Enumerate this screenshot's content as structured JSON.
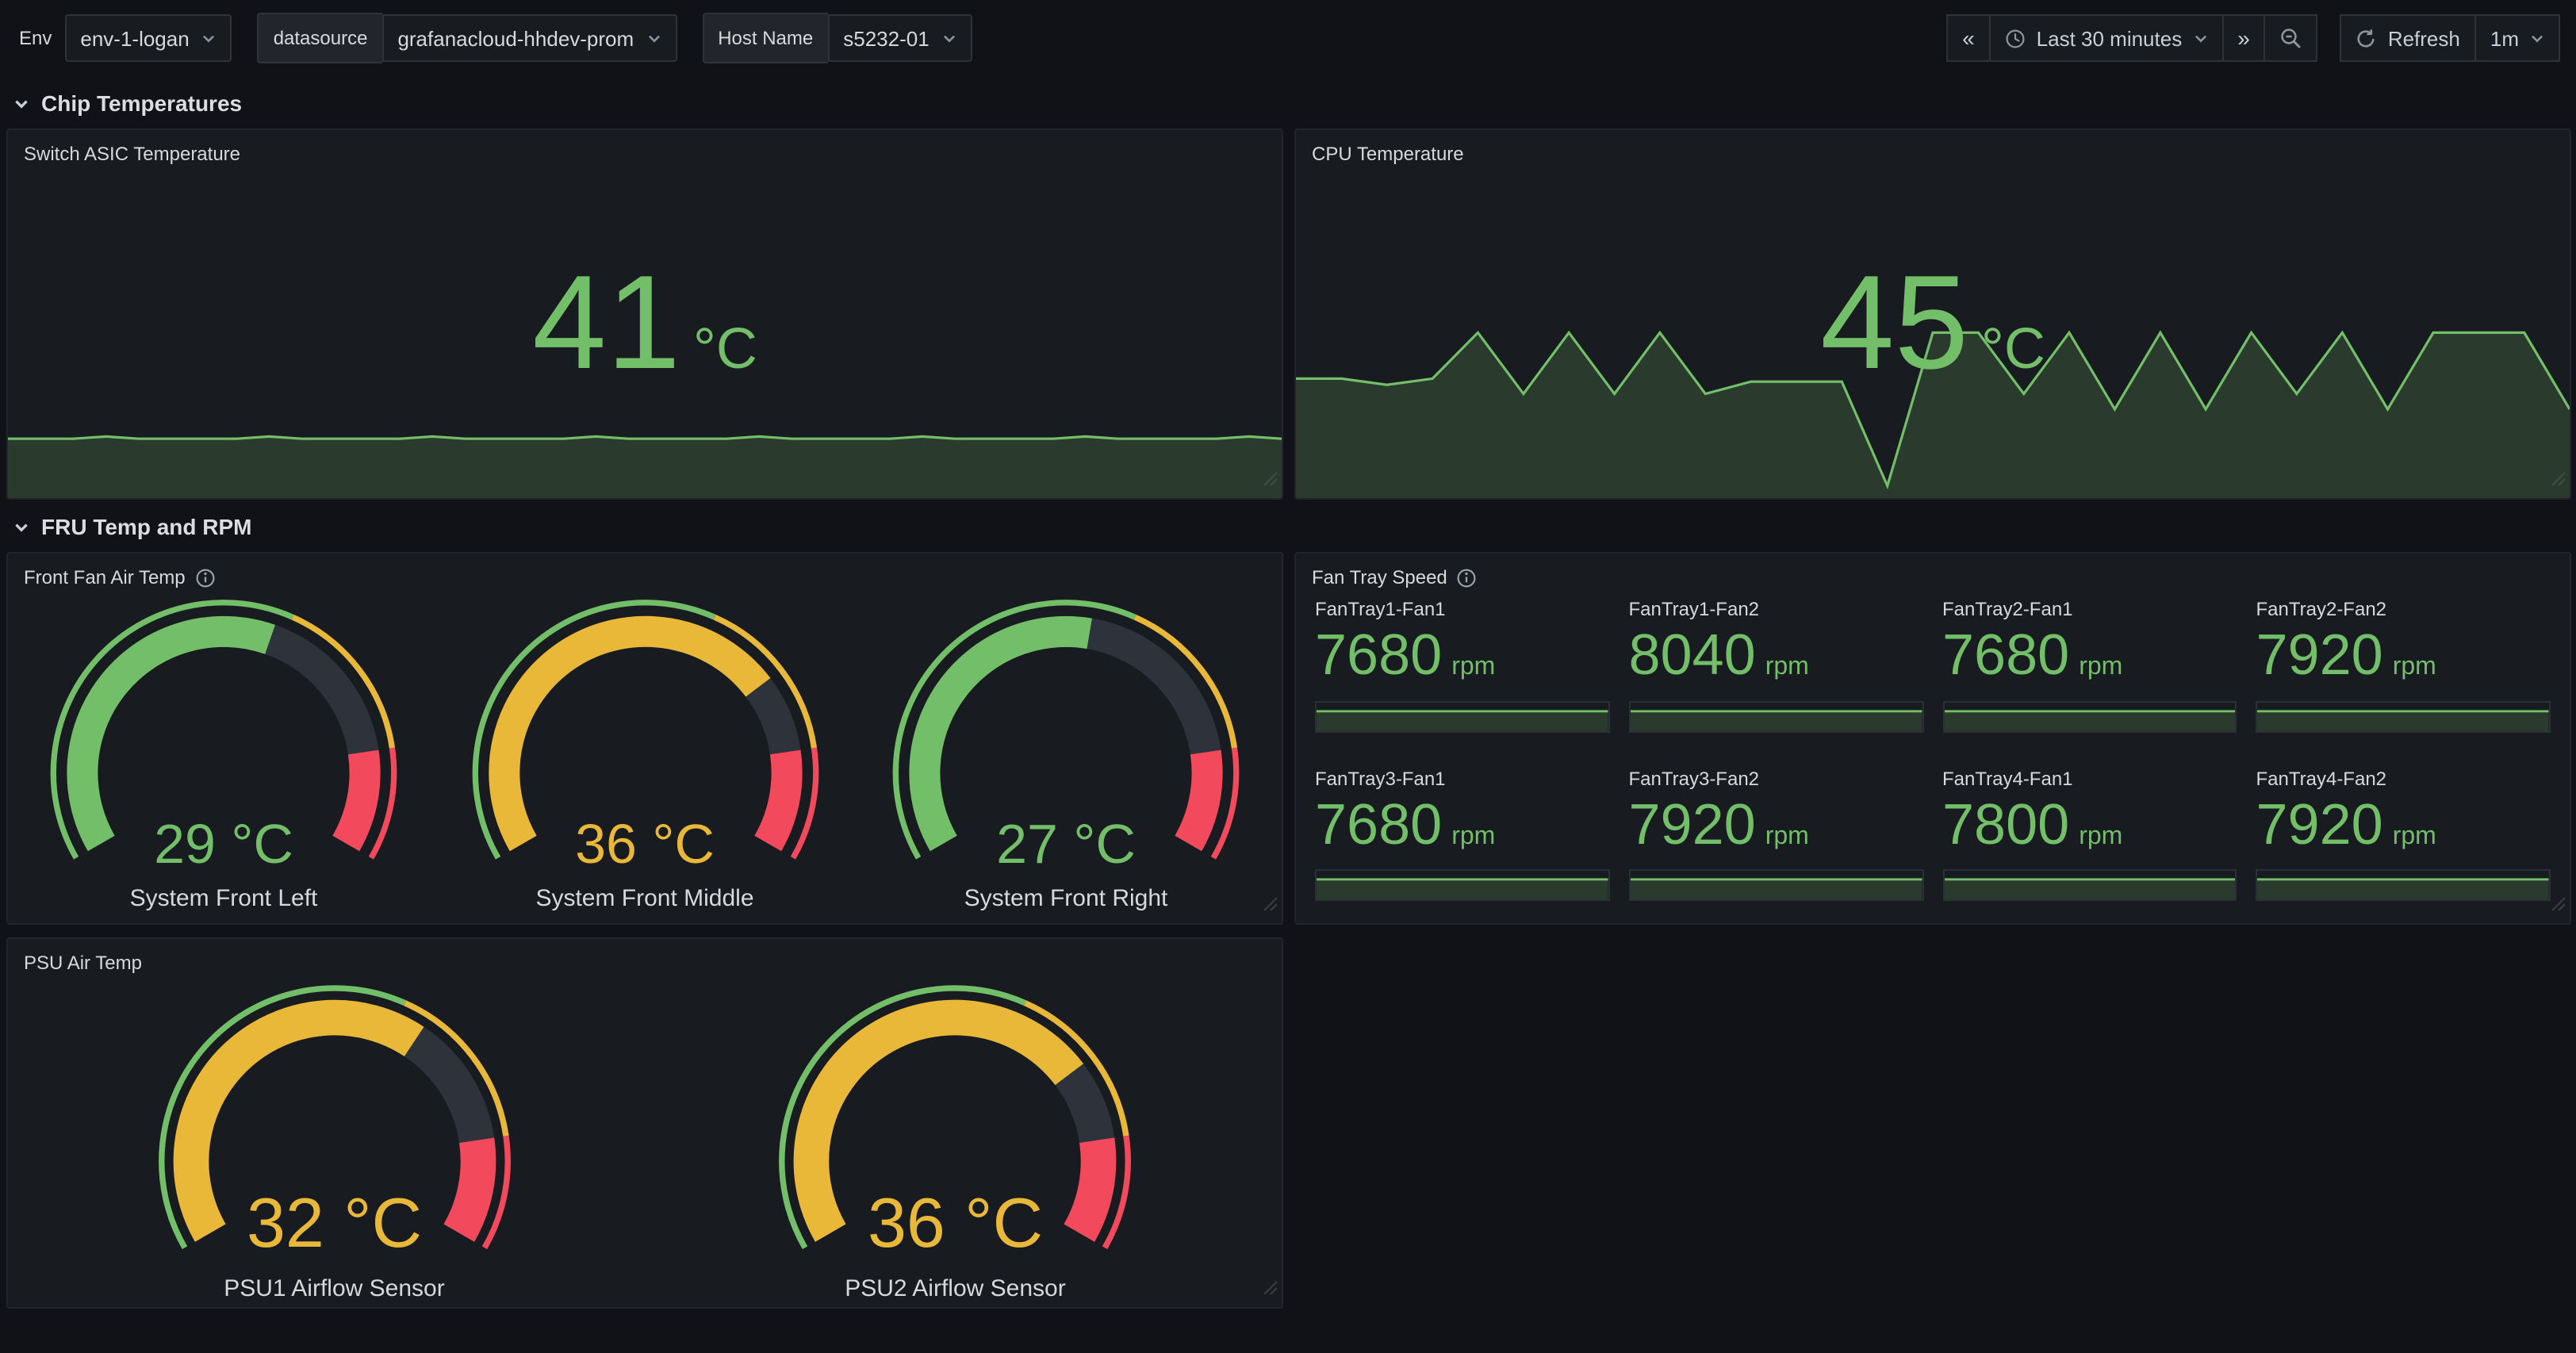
{
  "colors": {
    "green": "#73BF69",
    "yellow": "#EAB839",
    "red": "#F2495C",
    "panel_bg": "#181B1F",
    "page_bg": "#111217"
  },
  "topbar": {
    "variables": [
      {
        "label": "Env",
        "value": "env-1-logan"
      },
      {
        "label": "datasource",
        "value": "grafanacloud-hhdev-prom"
      },
      {
        "label": "Host Name",
        "value": "s5232-01"
      }
    ],
    "time": {
      "back_icon": "«",
      "range": "Last 30 minutes",
      "forward_icon": "»",
      "refresh_label": "Refresh",
      "interval": "1m"
    }
  },
  "rows": [
    {
      "title": "Chip Temperatures"
    },
    {
      "title": "FRU Temp and RPM"
    }
  ],
  "panels": {
    "switch_asic": {
      "title": "Switch ASIC Temperature",
      "value": "41",
      "unit": "°C"
    },
    "cpu": {
      "title": "CPU Temperature",
      "value": "45",
      "unit": "°C"
    },
    "front_fan": {
      "title": "Front Fan Air Temp",
      "gauges": [
        {
          "value": 29,
          "min": 0,
          "max": 50,
          "display": "29 °C",
          "label": "System Front Left",
          "color": "#73BF69"
        },
        {
          "value": 36,
          "min": 0,
          "max": 50,
          "display": "36 °C",
          "label": "System Front Middle",
          "color": "#EAB839"
        },
        {
          "value": 27,
          "min": 0,
          "max": 50,
          "display": "27 °C",
          "label": "System Front Right",
          "color": "#73BF69"
        }
      ]
    },
    "fan_tray": {
      "title": "Fan Tray Speed",
      "stats": [
        {
          "label": "FanTray1-Fan1",
          "value": "7680",
          "unit": "rpm",
          "spark": [
            7680,
            7680,
            7680,
            7680,
            7680,
            7680,
            7680,
            7680,
            7680,
            7680
          ]
        },
        {
          "label": "FanTray1-Fan2",
          "value": "8040",
          "unit": "rpm",
          "spark": [
            8040,
            8040,
            8040,
            8040,
            8040,
            8040,
            8040,
            8040,
            8040,
            8040
          ]
        },
        {
          "label": "FanTray2-Fan1",
          "value": "7680",
          "unit": "rpm",
          "spark": [
            7680,
            7680,
            7680,
            7680,
            7680,
            7680,
            7680,
            7680,
            7680,
            7680
          ]
        },
        {
          "label": "FanTray2-Fan2",
          "value": "7920",
          "unit": "rpm",
          "spark": [
            7920,
            7920,
            7920,
            7920,
            7920,
            7920,
            7920,
            7920,
            7920,
            7920
          ]
        },
        {
          "label": "FanTray3-Fan1",
          "value": "7680",
          "unit": "rpm",
          "spark": [
            7680,
            7680,
            7680,
            7680,
            7680,
            7680,
            7680,
            7680,
            7680,
            7680
          ]
        },
        {
          "label": "FanTray3-Fan2",
          "value": "7920",
          "unit": "rpm",
          "spark": [
            7920,
            7920,
            7920,
            7920,
            7920,
            7920,
            7920,
            7920,
            7920,
            7920
          ]
        },
        {
          "label": "FanTray4-Fan1",
          "value": "7800",
          "unit": "rpm",
          "spark": [
            7800,
            7800,
            7800,
            7800,
            7800,
            7800,
            7800,
            7800,
            7800,
            7800
          ]
        },
        {
          "label": "FanTray4-Fan2",
          "value": "7920",
          "unit": "rpm",
          "spark": [
            7920,
            7920,
            7920,
            7920,
            7920,
            7920,
            7920,
            7920,
            7920,
            7920
          ]
        }
      ]
    },
    "psu": {
      "title": "PSU Air Temp",
      "gauges": [
        {
          "value": 32,
          "min": 0,
          "max": 50,
          "display": "32 °C",
          "label": "PSU1 Airflow Sensor",
          "color": "#EAB839"
        },
        {
          "value": 36,
          "min": 0,
          "max": 50,
          "display": "36 °C",
          "label": "PSU2 Airflow Sensor",
          "color": "#EAB839"
        }
      ]
    }
  },
  "gauge_thresholds": [
    {
      "color": "#73BF69",
      "from": 0,
      "to": 0.6
    },
    {
      "color": "#EAB839",
      "from": 0.6,
      "to": 0.84
    },
    {
      "color": "#F2495C",
      "from": 0.84,
      "to": 1
    }
  ],
  "chart_data": [
    {
      "type": "area",
      "title": "Switch ASIC Temperature",
      "ylabel": "",
      "xlabel": "",
      "unit": "°C",
      "current_value": 41,
      "ylim": [
        34.5,
        42.5
      ],
      "values": [
        41,
        41,
        41,
        41.25,
        41,
        41,
        41,
        41,
        41.25,
        41,
        41,
        41,
        41,
        41.25,
        41,
        41,
        41,
        41,
        41.25,
        41,
        41,
        41,
        41,
        41.25,
        41,
        41,
        41,
        41,
        41.25,
        41,
        41,
        41,
        41,
        41.25,
        41,
        41,
        41,
        41,
        41.25,
        41
      ]
    },
    {
      "type": "area",
      "title": "CPU Temperature",
      "ylabel": "",
      "xlabel": "",
      "unit": "°C",
      "current_value": 45,
      "ylim": [
        40.6,
        46.4
      ],
      "values": [
        44.5,
        44.5,
        44.3,
        44.5,
        46,
        44,
        46,
        44,
        46,
        44,
        44.4,
        44.4,
        44.4,
        41,
        46,
        46,
        44,
        46,
        43.5,
        46,
        43.5,
        46,
        44,
        46,
        43.5,
        46,
        46,
        46,
        43.5
      ]
    },
    {
      "type": "gauge",
      "title": "Front Fan Air Temp",
      "unit": "°C",
      "labels": [
        "System Front Left",
        "System Front Middle",
        "System Front Right"
      ],
      "values": [
        29,
        36,
        27
      ],
      "range": [
        0,
        50
      ]
    },
    {
      "type": "stat",
      "title": "Fan Tray Speed",
      "unit": "rpm",
      "labels": [
        "FanTray1-Fan1",
        "FanTray1-Fan2",
        "FanTray2-Fan1",
        "FanTray2-Fan2",
        "FanTray3-Fan1",
        "FanTray3-Fan2",
        "FanTray4-Fan1",
        "FanTray4-Fan2"
      ],
      "values": [
        7680,
        8040,
        7680,
        7920,
        7680,
        7920,
        7800,
        7920
      ]
    },
    {
      "type": "gauge",
      "title": "PSU Air Temp",
      "unit": "°C",
      "labels": [
        "PSU1 Airflow Sensor",
        "PSU2 Airflow Sensor"
      ],
      "values": [
        32,
        36
      ],
      "range": [
        0,
        50
      ]
    }
  ]
}
